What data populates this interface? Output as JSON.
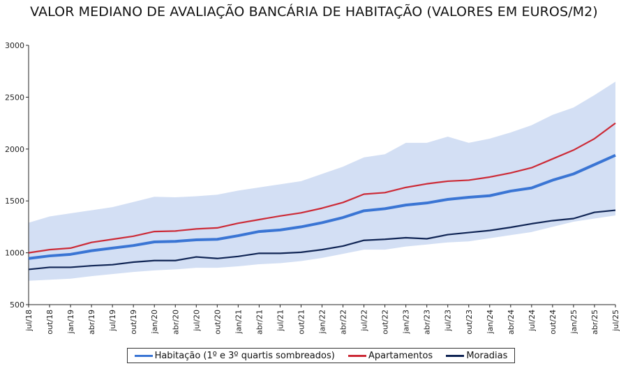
{
  "chart_data": {
    "type": "line",
    "title": "VALOR MEDIANO DE AVALIAÇÃO BANCÁRIA DE HABITAÇÃO (VALORES EM EUROS/M2)",
    "xlabel": "",
    "ylabel": "",
    "ylim": [
      500,
      3000
    ],
    "yticks": [
      "500",
      "1000",
      "1500",
      "2000",
      "2500",
      "3000"
    ],
    "grid": false,
    "legend_position": "bottom",
    "categories": [
      "jul/18",
      "out/18",
      "jan/19",
      "abr/19",
      "jul/19",
      "out/19",
      "jan/20",
      "abr/20",
      "jul/20",
      "out/20",
      "jan/21",
      "abr/21",
      "jul/21",
      "out/21",
      "jan/22",
      "abr/22",
      "jul/22",
      "out/22",
      "jan/23",
      "abr/23",
      "jul/23",
      "out/23",
      "jan/24",
      "abr/24",
      "jul/24",
      "out/24",
      "jan/25",
      "abr/25",
      "jul/25"
    ],
    "series": [
      {
        "name": "Habitação (1º e 3º quartis sombreados)",
        "color": "#3a75d4",
        "values": [
          945,
          970,
          985,
          1020,
          1045,
          1070,
          1105,
          1110,
          1125,
          1130,
          1165,
          1205,
          1220,
          1250,
          1290,
          1340,
          1405,
          1425,
          1460,
          1480,
          1515,
          1535,
          1550,
          1595,
          1625,
          1700,
          1760,
          1850,
          1940
        ]
      },
      {
        "name": "Apartamentos",
        "color": "#cc2a36",
        "values": [
          1000,
          1030,
          1045,
          1100,
          1130,
          1160,
          1205,
          1210,
          1230,
          1240,
          1285,
          1320,
          1355,
          1385,
          1430,
          1485,
          1565,
          1580,
          1630,
          1665,
          1690,
          1700,
          1730,
          1770,
          1820,
          1905,
          1990,
          2100,
          2250
        ]
      },
      {
        "name": "Moradias",
        "color": "#0f2454",
        "values": [
          840,
          860,
          860,
          875,
          885,
          910,
          925,
          925,
          960,
          945,
          965,
          995,
          995,
          1005,
          1030,
          1065,
          1120,
          1130,
          1145,
          1135,
          1175,
          1195,
          1215,
          1245,
          1280,
          1310,
          1330,
          1390,
          1410
        ]
      }
    ],
    "band": {
      "name": "1º e 3º quartis (Habitação)",
      "color": "#d3dff4",
      "q1": [
        730,
        740,
        750,
        775,
        795,
        815,
        830,
        840,
        855,
        855,
        870,
        890,
        900,
        920,
        950,
        990,
        1030,
        1030,
        1060,
        1080,
        1100,
        1110,
        1140,
        1170,
        1200,
        1250,
        1300,
        1330,
        1360
      ],
      "q3": [
        1290,
        1350,
        1380,
        1410,
        1440,
        1490,
        1540,
        1535,
        1545,
        1560,
        1600,
        1630,
        1660,
        1690,
        1760,
        1830,
        1920,
        1950,
        2060,
        2060,
        2120,
        2060,
        2100,
        2160,
        2230,
        2330,
        2400,
        2520,
        2650
      ]
    }
  }
}
